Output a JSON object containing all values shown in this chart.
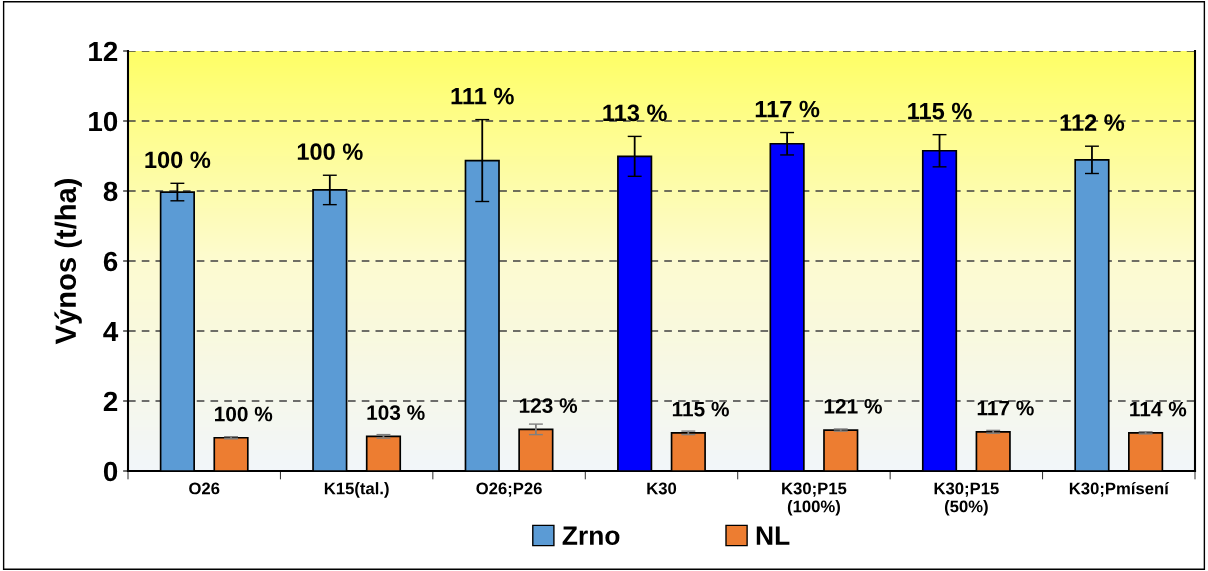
{
  "chart_data": {
    "type": "bar",
    "ylabel": "Výnos (t/ha)",
    "categories": [
      "O26",
      "K15(tal.)",
      "O26;P26",
      "K30",
      "K30;P15\n(100%)",
      "K30;P15\n(50%)",
      "K30;Pmísení"
    ],
    "series": [
      {
        "name": "Zrno",
        "color": "#5b9bd5",
        "colors": [
          "#5b9bd5",
          "#5b9bd5",
          "#5b9bd5",
          "#0000ff",
          "#0000ff",
          "#0000ff",
          "#5b9bd5"
        ],
        "values": [
          7.97,
          8.03,
          8.87,
          8.99,
          9.35,
          9.15,
          8.89
        ],
        "errors": [
          0.25,
          0.42,
          1.17,
          0.57,
          0.32,
          0.46,
          0.39
        ]
      },
      {
        "name": "NL",
        "color": "#ed7d31",
        "values": [
          0.95,
          0.99,
          1.19,
          1.09,
          1.17,
          1.12,
          1.09
        ],
        "errors": [
          0.03,
          0.05,
          0.15,
          0.05,
          0.03,
          0.04,
          0.03
        ]
      }
    ],
    "annotations": [
      "100 %",
      "100 %",
      "111 %",
      "113 %",
      "117 %",
      "115 %",
      "112 %",
      "100 %",
      "103 %",
      "123 %",
      "115 %",
      "121 %",
      "117 %",
      "114 %"
    ],
    "ylim": [
      0,
      12
    ],
    "yticks": [
      0,
      2,
      4,
      6,
      8,
      10,
      12
    ],
    "grid": "y",
    "legend": "bottom"
  }
}
